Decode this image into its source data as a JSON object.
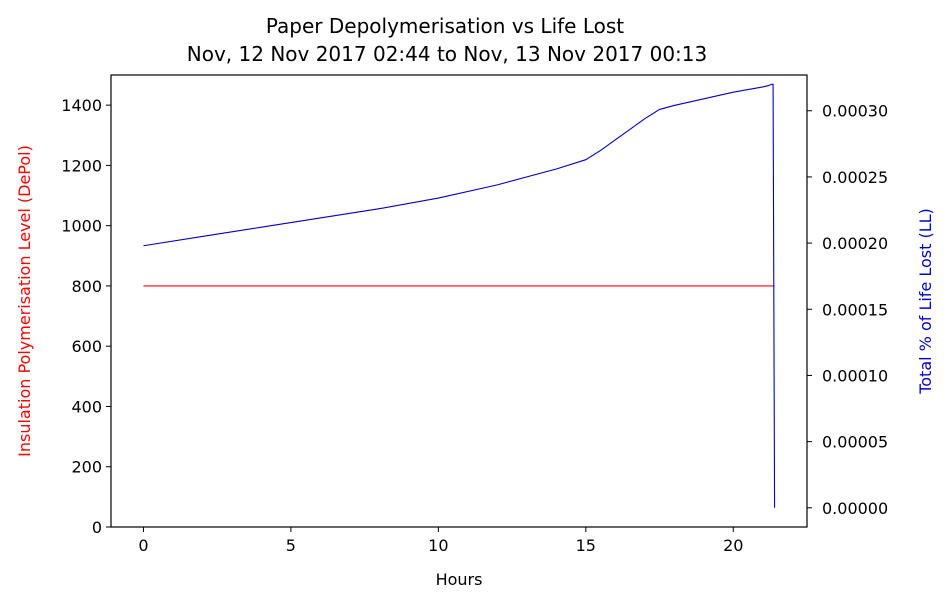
{
  "chart_data": {
    "type": "line",
    "title": "Paper Depolymerisation vs Life Lost",
    "subtitle": "Nov, 12 Nov 2017 02:44 to Nov, 13 Nov 2017 00:13",
    "xlabel": "Hours",
    "ylabel_left": "Insulation Polymerisation Level (DePol)",
    "ylabel_right": "Total % of Life Lost (LL)",
    "xlim": [
      -1.1,
      22.5
    ],
    "ylim_left": [
      0,
      1500
    ],
    "ylim_right": [
      -1.45e-05,
      0.000327
    ],
    "xticks": [
      0,
      5,
      10,
      15,
      20
    ],
    "xtick_labels": [
      "0",
      "5",
      "10",
      "15",
      "20"
    ],
    "yticks_left": [
      0,
      200,
      400,
      600,
      800,
      1000,
      1200,
      1400
    ],
    "ytick_labels_left": [
      "0",
      "200",
      "400",
      "600",
      "800",
      "1000",
      "1200",
      "1400"
    ],
    "yticks_right": [
      0,
      5e-05,
      0.0001,
      0.00015,
      0.0002,
      0.00025,
      0.0003
    ],
    "ytick_labels_right": [
      "0.00000",
      "0.00005",
      "0.00010",
      "0.00015",
      "0.00020",
      "0.00025",
      "0.00030"
    ],
    "grid": false,
    "series": [
      {
        "axis": "left",
        "color": "#ff0000",
        "x": [
          0,
          21.4
        ],
        "y": [
          800,
          800
        ]
      },
      {
        "axis": "right",
        "color": "#0000cc",
        "x": [
          0,
          2,
          4,
          6,
          8,
          10,
          12,
          14,
          15,
          15.5,
          16,
          16.5,
          17,
          17.5,
          18,
          19,
          20,
          21,
          21.2,
          21.3,
          21.35,
          21.4
        ],
        "y": [
          0.000198,
          0.000205,
          0.000212,
          0.000219,
          0.000226,
          0.000234,
          0.000244,
          0.000256,
          0.000263,
          0.00027,
          0.000278,
          0.000286,
          0.000294,
          0.000301,
          0.000304,
          0.000309,
          0.000314,
          0.000318,
          0.000319,
          0.00032,
          0.00032,
          0.0
        ]
      }
    ]
  }
}
